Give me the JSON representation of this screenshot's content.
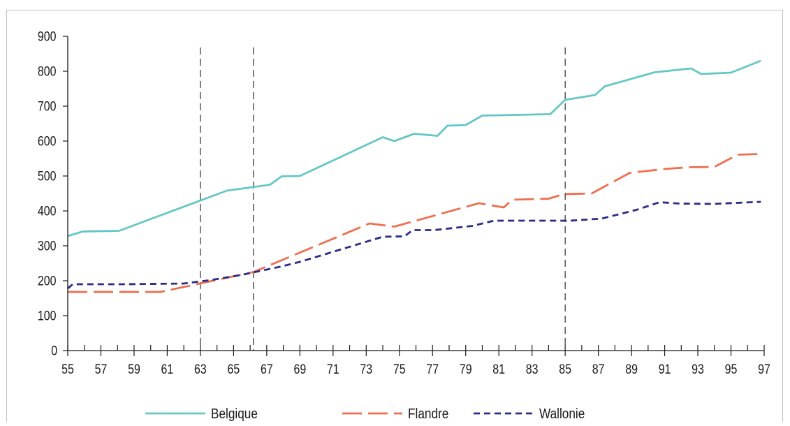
{
  "chart_data": {
    "type": "line",
    "title": "",
    "xlabel": "",
    "ylabel": "",
    "xlim": [
      55,
      97
    ],
    "ylim": [
      0,
      900
    ],
    "yticks": [
      0,
      100,
      200,
      300,
      400,
      500,
      600,
      700,
      800,
      900
    ],
    "xtick_labels": [
      "55",
      "57",
      "59",
      "61",
      "63",
      "65",
      "67",
      "69",
      "71",
      "73",
      "75",
      "77",
      "79",
      "81",
      "83",
      "85",
      "87",
      "89",
      "91",
      "93",
      "95",
      "97"
    ],
    "grid": false,
    "legend_position": "bottom",
    "vertical_markers": [
      63,
      66.2,
      85
    ],
    "series": [
      {
        "name": "Belgique",
        "color": "#66c6c6",
        "style": "solid",
        "points": [
          [
            55,
            328
          ],
          [
            55.9,
            341
          ],
          [
            58.1,
            343
          ],
          [
            64.6,
            458
          ],
          [
            67.2,
            475
          ],
          [
            67.9,
            499
          ],
          [
            69,
            500
          ],
          [
            74,
            611
          ],
          [
            74.7,
            600
          ],
          [
            75.9,
            621
          ],
          [
            77.3,
            615
          ],
          [
            77.9,
            644
          ],
          [
            79,
            646
          ],
          [
            80,
            673
          ],
          [
            84.1,
            677
          ],
          [
            85,
            718
          ],
          [
            86.8,
            732
          ],
          [
            87.4,
            757
          ],
          [
            90.4,
            797
          ],
          [
            92.6,
            808
          ],
          [
            93.2,
            792
          ],
          [
            95,
            796
          ],
          [
            96.8,
            830
          ]
        ]
      },
      {
        "name": "Flandre",
        "color": "#ee6e4e",
        "style": "dashed",
        "points": [
          [
            55,
            168
          ],
          [
            60.6,
            168
          ],
          [
            66.2,
            225
          ],
          [
            73.2,
            364
          ],
          [
            74.7,
            355
          ],
          [
            79.8,
            422
          ],
          [
            81.3,
            410
          ],
          [
            81.8,
            432
          ],
          [
            84,
            435
          ],
          [
            84.9,
            448
          ],
          [
            86.6,
            450
          ],
          [
            88.9,
            509
          ],
          [
            91,
            520
          ],
          [
            92.4,
            525
          ],
          [
            94,
            526
          ],
          [
            95.4,
            561
          ],
          [
            96.8,
            563
          ]
        ]
      },
      {
        "name": "Wallonie",
        "color": "#2b2b8a",
        "style": "dotted",
        "points": [
          [
            55,
            178
          ],
          [
            55.3,
            190
          ],
          [
            58.4,
            190
          ],
          [
            62,
            192
          ],
          [
            63.5,
            201
          ],
          [
            65.4,
            216
          ],
          [
            67.8,
            240
          ],
          [
            69,
            254
          ],
          [
            74,
            326
          ],
          [
            75.3,
            327
          ],
          [
            75.8,
            345
          ],
          [
            77.1,
            345
          ],
          [
            79.4,
            357
          ],
          [
            80.7,
            372
          ],
          [
            85.3,
            372
          ],
          [
            87.2,
            378
          ],
          [
            89.3,
            403
          ],
          [
            90.7,
            425
          ],
          [
            91.9,
            421
          ],
          [
            93.9,
            420
          ],
          [
            96.8,
            426
          ]
        ]
      }
    ]
  }
}
